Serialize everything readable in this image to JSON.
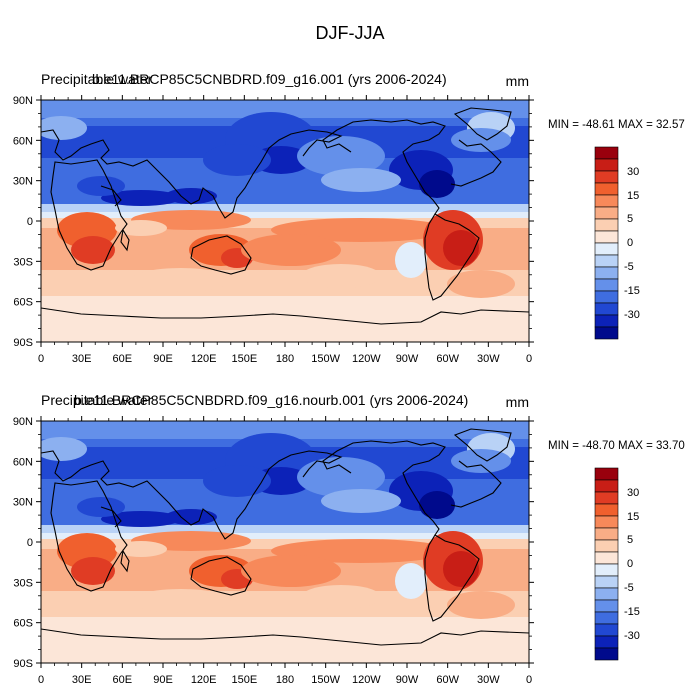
{
  "figure": {
    "main_title": "DJF-JJA"
  },
  "chart_data": [
    {
      "type": "heatmap",
      "field_title": "Precipitable water",
      "case_title": "b.e11.BRCP85C5CNBDRD.f09_g16.001 (yrs 2006-2024)",
      "units": "mm",
      "min_max_text": "MIN = -48.61 MAX =  32.57",
      "min": -48.61,
      "max": 32.57,
      "x_tick_labels": [
        "0",
        "30E",
        "60E",
        "90E",
        "120E",
        "150E",
        "180",
        "150W",
        "120W",
        "90W",
        "60W",
        "30W",
        "0"
      ],
      "y_tick_labels": [
        "90N",
        "60N",
        "30N",
        "0",
        "30S",
        "60S",
        "90S"
      ],
      "colorbar_labels": [
        "30",
        "15",
        "5",
        "0",
        "-5",
        "-15",
        "-30"
      ]
    },
    {
      "type": "heatmap",
      "field_title": "Precipitable water",
      "case_title": "b.e11.BRCP85C5CNBDRD.f09_g16.nourb.001 (yrs 2006-2024)",
      "units": "mm",
      "min_max_text": "MIN = -48.70 MAX =  33.70",
      "min": -48.7,
      "max": 33.7,
      "x_tick_labels": [
        "0",
        "30E",
        "60E",
        "90E",
        "120E",
        "150E",
        "180",
        "150W",
        "120W",
        "90W",
        "60W",
        "30W",
        "0"
      ],
      "y_tick_labels": [
        "90N",
        "60N",
        "30N",
        "0",
        "30S",
        "60S",
        "90S"
      ],
      "colorbar_labels": [
        "30",
        "15",
        "5",
        "0",
        "-5",
        "-15",
        "-30"
      ]
    }
  ],
  "colorbar_colors": [
    "#99000d",
    "#c81e16",
    "#e03c24",
    "#f0602e",
    "#f7895a",
    "#f9ad86",
    "#fbcfb2",
    "#fce6d8",
    "#e2eefb",
    "#b9d2f6",
    "#8cb0f0",
    "#6490ea",
    "#3f6de0",
    "#2148d2",
    "#0c22b8",
    "#000a8c"
  ],
  "map": {
    "land_outline_color": "#000000",
    "frame_color": "#000000"
  }
}
